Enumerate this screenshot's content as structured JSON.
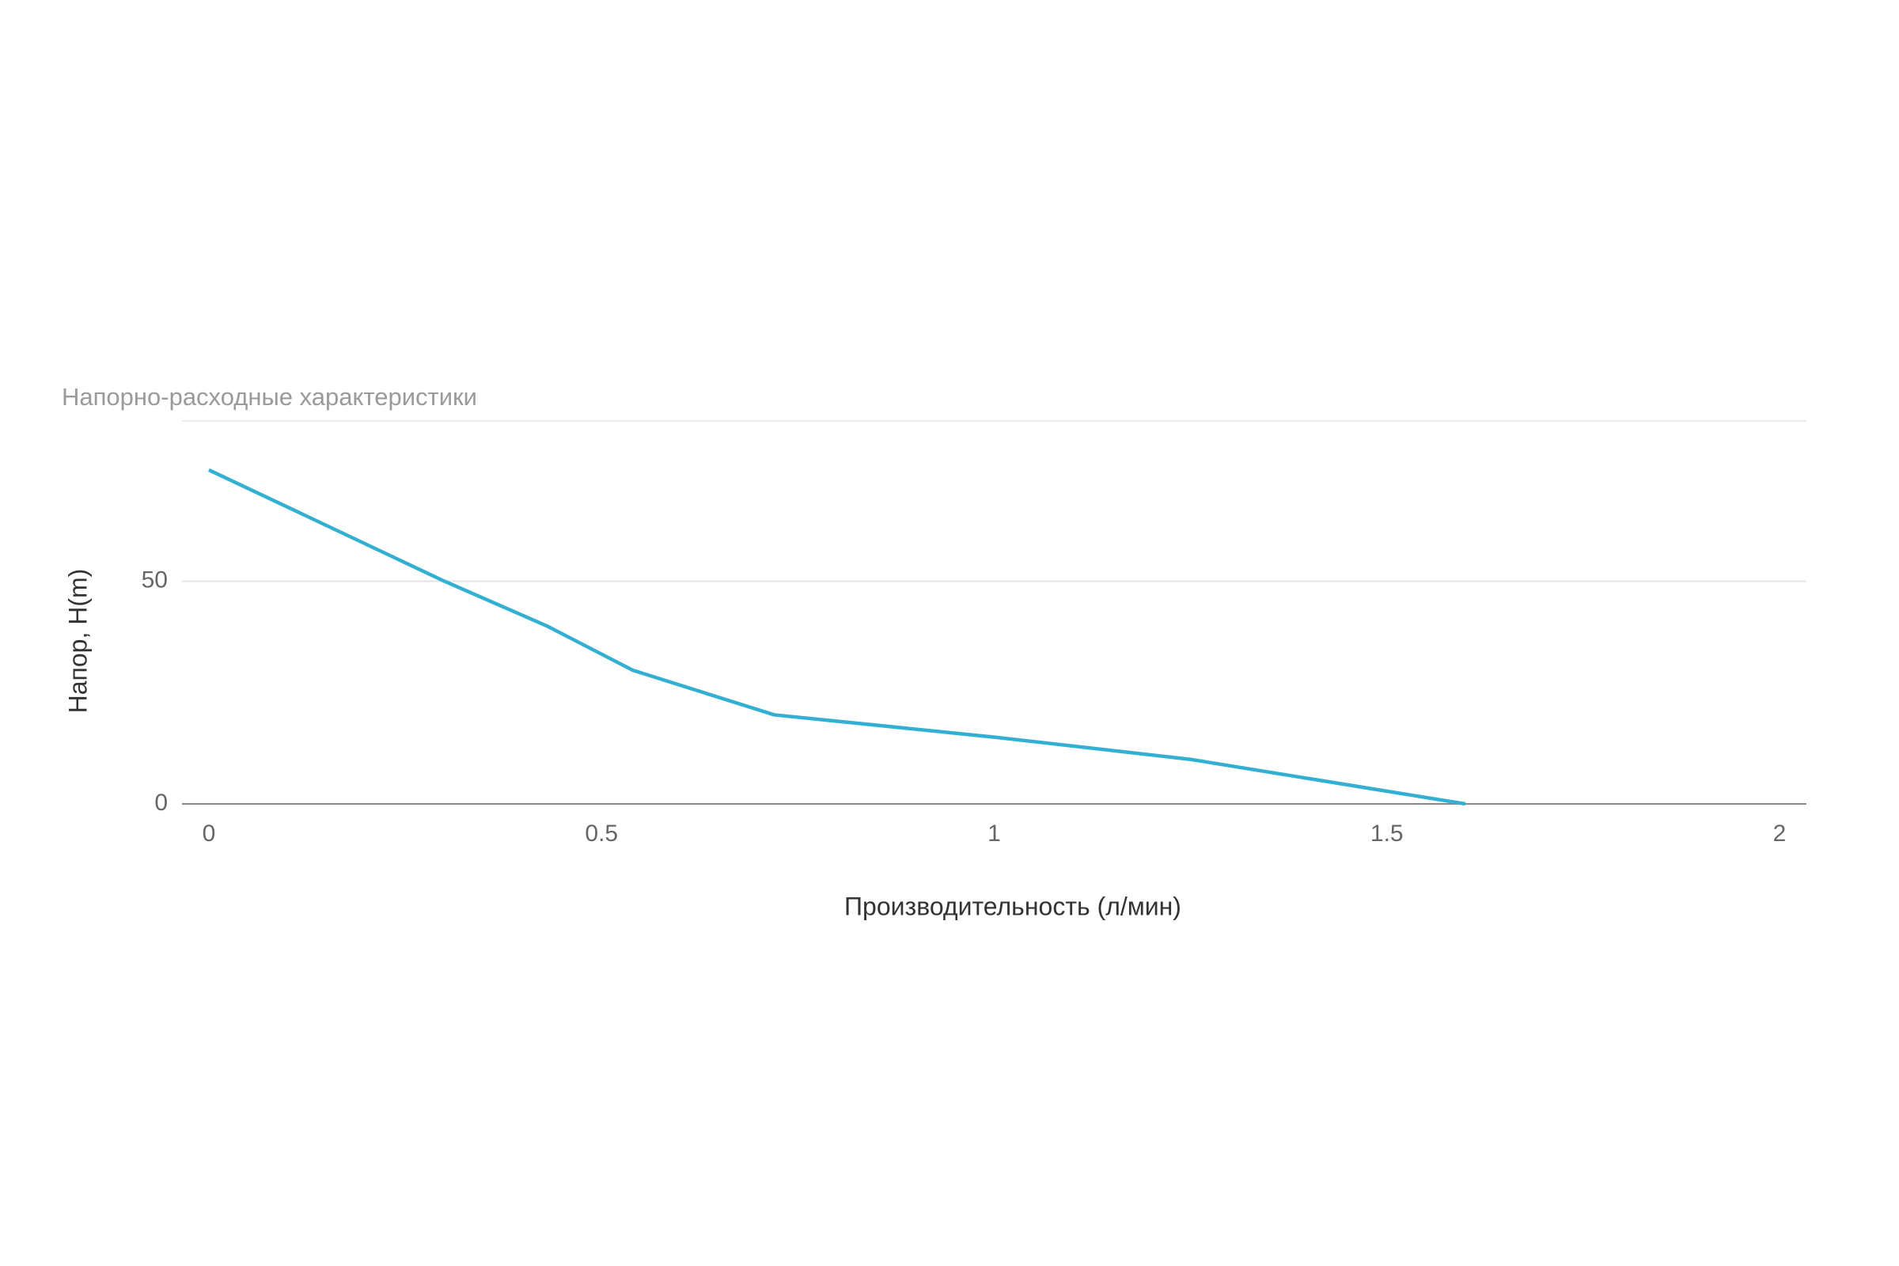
{
  "chart_data": {
    "type": "line",
    "title": "Напорно-расходные характеристики",
    "x_label": "Производительность (л/мин)",
    "y_label": "Напор, H(m)",
    "x": [
      0,
      0.3,
      0.43,
      0.54,
      0.72,
      1,
      1.25,
      1.6
    ],
    "series": [
      {
        "color": "#33b0d1",
        "values": [
          75,
          50,
          40,
          30,
          20,
          15,
          10,
          0
        ]
      }
    ],
    "xlim": [
      0,
      2
    ],
    "xticks": [
      0,
      0.5,
      1,
      1.5,
      2
    ],
    "ylim": [
      0,
      86
    ],
    "yticks": [
      0,
      50
    ],
    "grid": true
  }
}
